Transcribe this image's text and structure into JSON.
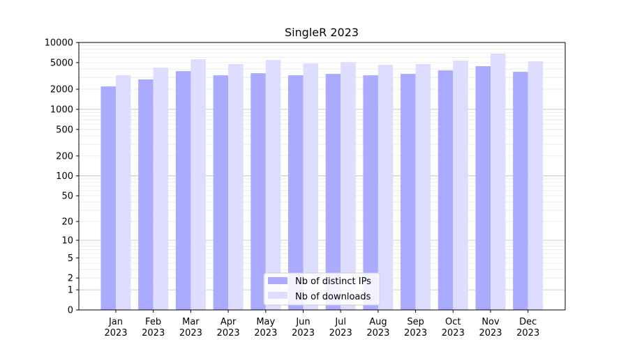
{
  "chart_data": {
    "type": "bar",
    "title": "SingleR 2023",
    "xlabel": "",
    "ylabel": "",
    "yscale": "log10(1+y)",
    "ylim": [
      0,
      10000
    ],
    "yticks": [
      0,
      1,
      2,
      5,
      10,
      20,
      50,
      100,
      200,
      500,
      1000,
      2000,
      5000,
      10000
    ],
    "grid": true,
    "legend_position": "bottom-center",
    "categories": [
      [
        "Jan",
        "2023"
      ],
      [
        "Feb",
        "2023"
      ],
      [
        "Mar",
        "2023"
      ],
      [
        "Apr",
        "2023"
      ],
      [
        "May",
        "2023"
      ],
      [
        "Jun",
        "2023"
      ],
      [
        "Jul",
        "2023"
      ],
      [
        "Aug",
        "2023"
      ],
      [
        "Sep",
        "2023"
      ],
      [
        "Oct",
        "2023"
      ],
      [
        "Nov",
        "2023"
      ],
      [
        "Dec",
        "2023"
      ]
    ],
    "series": [
      {
        "name": "Nb of distinct IPs",
        "color": "#aaaaff",
        "values": [
          2200,
          2800,
          3730,
          3230,
          3470,
          3230,
          3390,
          3230,
          3390,
          3820,
          4420,
          3640
        ]
      },
      {
        "name": "Nb of downloads",
        "color": "#ddddff",
        "values": [
          3230,
          4210,
          5610,
          4750,
          5480,
          4860,
          5100,
          4630,
          4750,
          5350,
          6810,
          5230
        ]
      }
    ]
  }
}
